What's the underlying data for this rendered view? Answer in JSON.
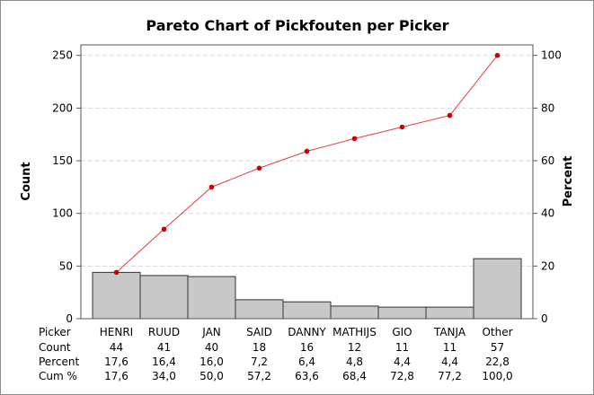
{
  "chart_data": {
    "type": "bar",
    "subtype": "pareto",
    "title": "Pareto Chart of Pickfouten per Picker",
    "ylabel": "Count",
    "y2label": "Percent",
    "ylim": [
      0,
      260
    ],
    "y2lim": [
      0,
      104
    ],
    "yticks": [
      "0",
      "50",
      "100",
      "150",
      "200",
      "250"
    ],
    "y2ticks": [
      "0",
      "20",
      "40",
      "60",
      "80",
      "100"
    ],
    "grid": true,
    "bar_color": "#c8c8c8",
    "line_color": "#e04040",
    "point_color": "#cc0000",
    "categories": [
      "HENRI",
      "RUUD",
      "JAN",
      "SAID",
      "DANNY",
      "MATHIJS",
      "GIO",
      "TANJA",
      "Other"
    ],
    "values": [
      44,
      41,
      40,
      18,
      16,
      12,
      11,
      11,
      57
    ],
    "cumulative_percent": [
      17.6,
      34.0,
      50.0,
      57.2,
      63.6,
      68.4,
      72.8,
      77.2,
      100.0
    ],
    "table": {
      "header_label": "Picker",
      "rows": [
        {
          "label": "Count",
          "cells": [
            "44",
            "41",
            "40",
            "18",
            "16",
            "12",
            "11",
            "11",
            "57"
          ]
        },
        {
          "label": "Percent",
          "cells": [
            "17,6",
            "16,4",
            "16,0",
            "7,2",
            "6,4",
            "4,8",
            "4,4",
            "4,4",
            "22,8"
          ]
        },
        {
          "label": "Cum %",
          "cells": [
            "17,6",
            "34,0",
            "50,0",
            "57,2",
            "63,6",
            "68,4",
            "72,8",
            "77,2",
            "100,0"
          ]
        }
      ]
    }
  }
}
